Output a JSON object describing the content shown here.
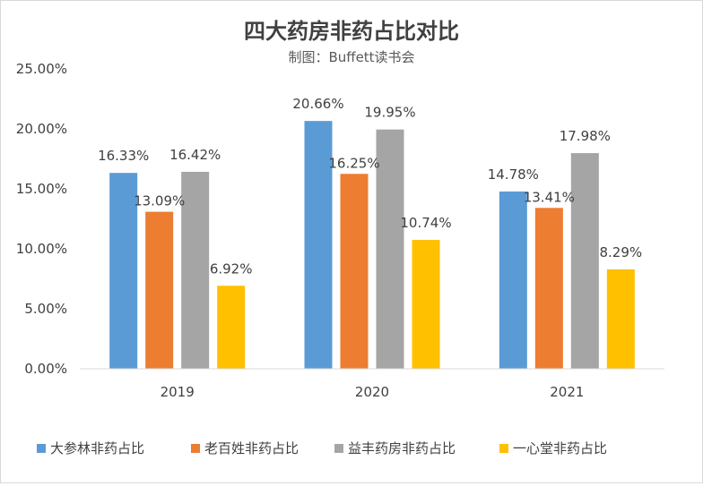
{
  "chart_data": {
    "type": "bar",
    "title": "四大药房非药占比对比",
    "subtitle": "制图：Buffett读书会",
    "categories": [
      "2019",
      "2020",
      "2021"
    ],
    "series": [
      {
        "name": "大参林非药占比",
        "color": "#5b9bd5",
        "values": [
          16.33,
          20.66,
          14.78
        ],
        "labels": [
          "16.33%",
          "20.66%",
          "14.78%"
        ]
      },
      {
        "name": "老百姓非药占比",
        "color": "#ed7d31",
        "values": [
          13.09,
          16.25,
          13.41
        ],
        "labels": [
          "13.09%",
          "16.25%",
          "13.41%"
        ]
      },
      {
        "name": "益丰药房非药占比",
        "color": "#a5a5a5",
        "values": [
          16.42,
          19.95,
          17.98
        ],
        "labels": [
          "16.42%",
          "19.95%",
          "17.98%"
        ]
      },
      {
        "name": "一心堂非药占比",
        "color": "#ffc000",
        "values": [
          6.92,
          10.74,
          8.29
        ],
        "labels": [
          "6.92%",
          "10.74%",
          "8.29%"
        ]
      }
    ],
    "ylim": [
      0,
      25
    ],
    "yticks": [
      0,
      5,
      10,
      15,
      20,
      25
    ],
    "ytick_labels": [
      "0.00%",
      "5.00%",
      "10.00%",
      "15.00%",
      "20.00%",
      "25.00%"
    ],
    "xlabel": "",
    "ylabel": "",
    "grid": false,
    "legend": "bottom"
  }
}
